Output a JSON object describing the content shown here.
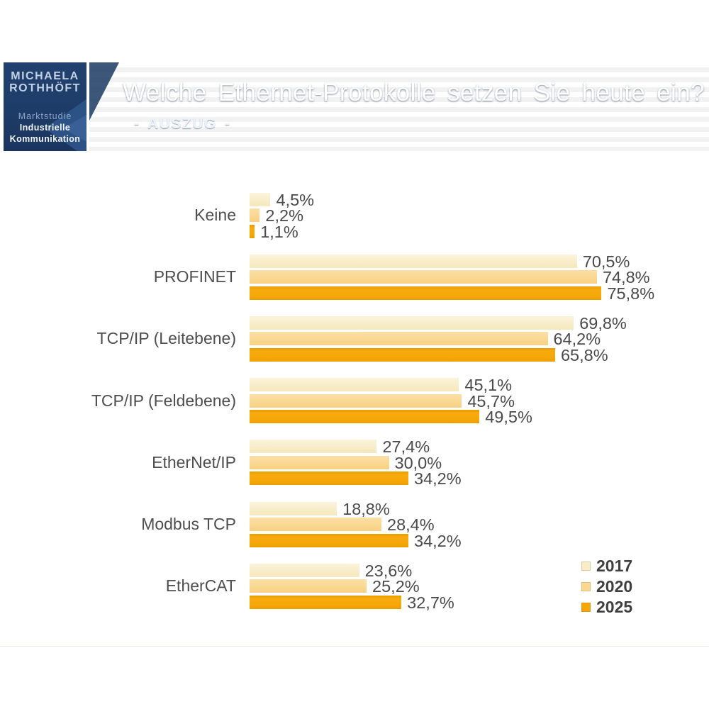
{
  "header": {
    "logo": {
      "name_line1": "MICHAELA",
      "name_line2": "ROTHHÖFT",
      "sub_line1": "Marktstudie",
      "sub_line2": "Industrielle",
      "sub_line3": "Kommunikation"
    },
    "title": "Welche Ethernet-Protokolle setzen Sie heute ein?",
    "subtitle": "- AUSZUG -"
  },
  "colors": {
    "banner_blue_mid": "#34689e",
    "banner_blue_dark": "#19395f",
    "banner_blue_light": "#74a3cf",
    "logo_navy": "#1e3c68",
    "logo_arrow_blue": "#2e5387",
    "series_2017": "#f8edc9",
    "series_2020": "#fad891",
    "series_2025": "#f5a707",
    "label_gray": "#4a4a4a"
  },
  "chart_data": {
    "type": "bar",
    "orientation": "horizontal",
    "title": "Welche Ethernet-Protokolle setzen Sie heute ein?",
    "subtitle": "- AUSZUG -",
    "categories": [
      "Keine",
      "PROFINET",
      "TCP/IP (Leitebene)",
      "TCP/IP (Feldebene)",
      "EtherNet/IP",
      "Modbus TCP",
      "EtherCAT"
    ],
    "series": [
      {
        "name": "2017",
        "color": "#f8edc9",
        "values": [
          4.5,
          70.5,
          69.8,
          45.1,
          27.4,
          18.8,
          23.6
        ],
        "labels": [
          "4,5%",
          "70,5%",
          "69,8%",
          "45,1%",
          "27,4%",
          "18,8%",
          "23,6%"
        ]
      },
      {
        "name": "2020",
        "color": "#fad891",
        "values": [
          2.2,
          74.8,
          64.2,
          45.7,
          30.0,
          28.4,
          25.2
        ],
        "labels": [
          "2,2%",
          "74,8%",
          "64,2%",
          "45,7%",
          "30,0%",
          "28,4%",
          "25,2%"
        ]
      },
      {
        "name": "2025",
        "color": "#f5a707",
        "values": [
          1.1,
          75.8,
          65.8,
          49.5,
          34.2,
          34.2,
          32.7
        ],
        "labels": [
          "1,1%",
          "75,8%",
          "65,8%",
          "49,5%",
          "34,2%",
          "34,2%",
          "32,7%"
        ]
      }
    ],
    "value_label_format": "comma-decimal-percent",
    "xlim": [
      0,
      80
    ],
    "grid": false,
    "axes_visible": false,
    "legend": {
      "position": "bottom-right",
      "entries": [
        "2017",
        "2020",
        "2025"
      ]
    }
  }
}
